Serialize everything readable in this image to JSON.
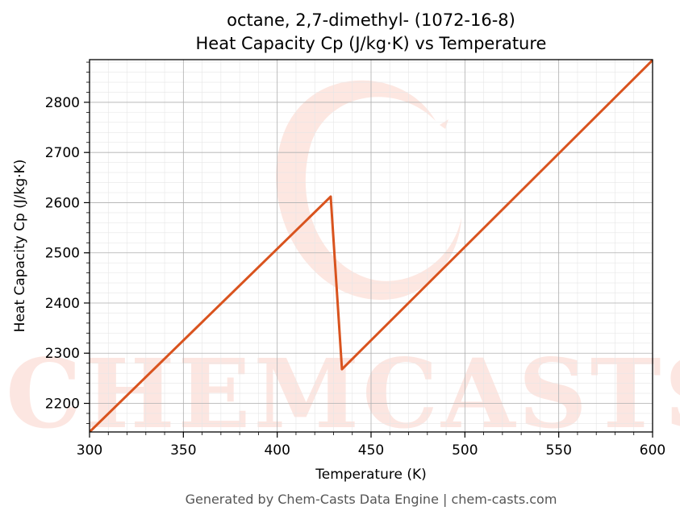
{
  "chart_data": {
    "type": "line",
    "title": "octane, 2,7-dimethyl- (1072-16-8)",
    "subtitle": "Heat Capacity Cp (J/kg·K) vs Temperature",
    "xlabel": "Temperature (K)",
    "ylabel": "Heat Capacity Cp (J/kg·K)",
    "xlim": [
      300,
      600
    ],
    "ylim": [
      2143,
      2885
    ],
    "x_ticks": [
      300,
      350,
      400,
      450,
      500,
      550,
      600
    ],
    "y_ticks": [
      2200,
      2300,
      2400,
      2500,
      2600,
      2700,
      2800
    ],
    "grid": true,
    "line_color": "#d9531e",
    "series": [
      {
        "x": [
          300,
          428.5,
          434.5,
          600
        ],
        "y": [
          2143,
          2612,
          2268,
          2884
        ]
      }
    ]
  },
  "watermark": {
    "text": "CHEMCASTS",
    "color": "#fbd3c9"
  },
  "footer": "Generated by Chem-Casts Data Engine | chem-casts.com"
}
